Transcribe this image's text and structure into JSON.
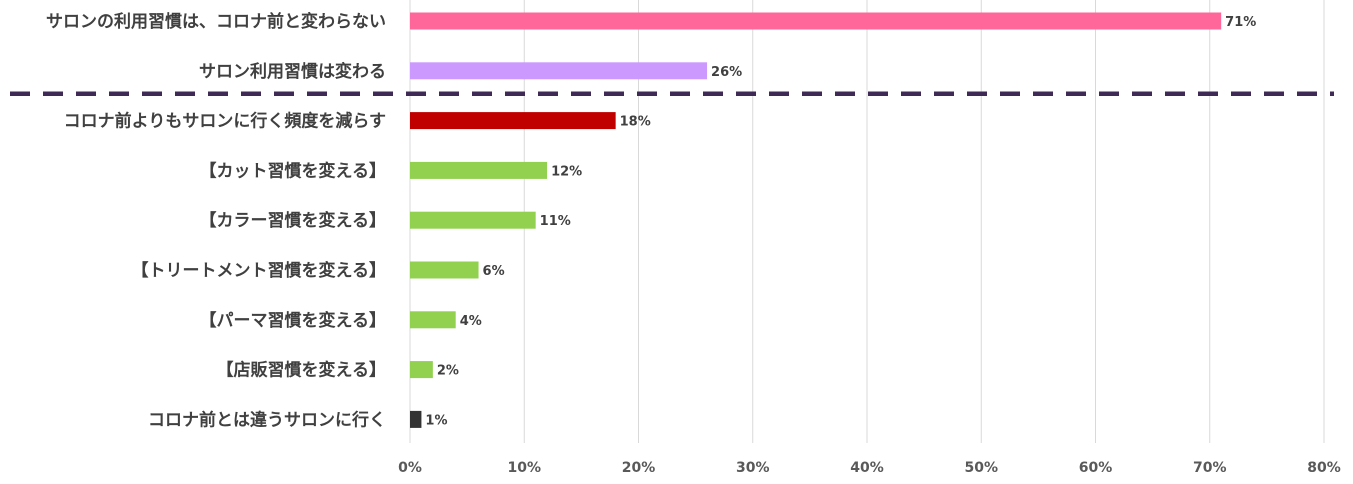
{
  "chart_data": {
    "type": "bar",
    "orientation": "horizontal",
    "categories": [
      "サロンの利用習慣は、コロナ前と変わらない",
      "サロン利用習慣は変わる",
      "コロナ前よりもサロンに行く頻度を減らす",
      "【カット習慣を変える】",
      "【カラー習慣を変える】",
      "【トリートメント習慣を変える】",
      "【パーマ習慣を変える】",
      "【店販習慣を変える】",
      "コロナ前とは違うサロンに行く"
    ],
    "values": [
      71,
      26,
      18,
      12,
      11,
      6,
      4,
      2,
      1
    ],
    "value_labels": [
      "71%",
      "26%",
      "18%",
      "12%",
      "11%",
      "6%",
      "4%",
      "2%",
      "1%"
    ],
    "bar_colors": [
      "#FF6699",
      "#CC99FF",
      "#C00000",
      "#92D050",
      "#92D050",
      "#92D050",
      "#92D050",
      "#92D050",
      "#333333"
    ],
    "xlim": [
      0,
      80
    ],
    "x_ticks": [
      0,
      10,
      20,
      30,
      40,
      50,
      60,
      70,
      80
    ],
    "x_tick_labels": [
      "0%",
      "10%",
      "20%",
      "30%",
      "40%",
      "50%",
      "60%",
      "70%",
      "80%"
    ],
    "grid": "vertical",
    "separator": {
      "style": "dashed",
      "color": "#3F2A56",
      "after_category_index": 1
    },
    "title": "",
    "xlabel": "",
    "ylabel": ""
  }
}
